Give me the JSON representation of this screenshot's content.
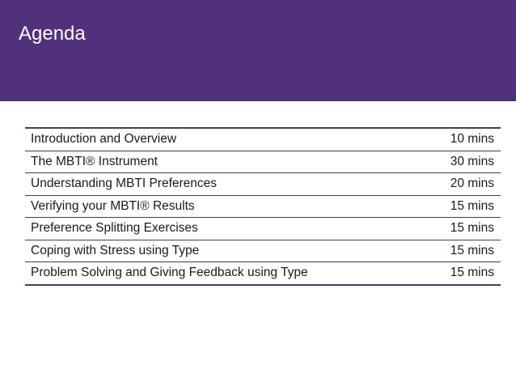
{
  "slide": {
    "title": "Agenda"
  },
  "theme": {
    "header_color": "#51307c",
    "rule_color": "#51307c"
  },
  "agenda": [
    {
      "item": "Introduction and Overview",
      "duration": "10 mins"
    },
    {
      "item": "The MBTI® Instrument",
      "duration": "30 mins"
    },
    {
      "item": "Understanding MBTI Preferences",
      "duration": "20 mins"
    },
    {
      "item": "Verifying your MBTI® Results",
      "duration": "15 mins"
    },
    {
      "item": "Preference Splitting Exercises",
      "duration": "15 mins"
    },
    {
      "item": "Coping with Stress using Type",
      "duration": "15 mins"
    },
    {
      "item": "Problem Solving and Giving Feedback using Type",
      "duration": "15 mins"
    }
  ]
}
